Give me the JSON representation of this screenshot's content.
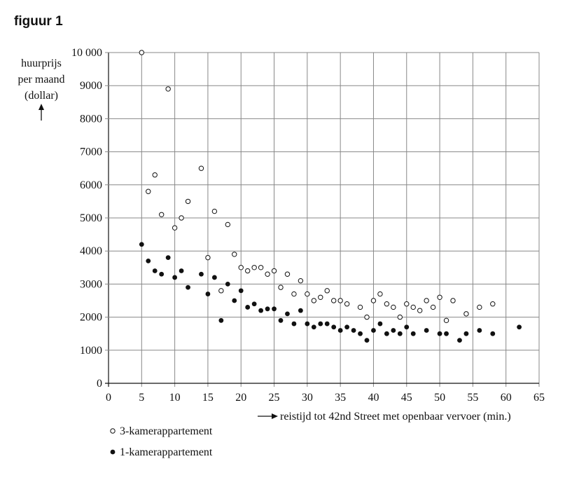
{
  "figure_title": "figuur 1",
  "chart_data": {
    "type": "scatter",
    "ylabel_lines": [
      "huurprijs",
      "per maand",
      "(dollar)"
    ],
    "xlabel": "reistijd tot 42nd Street met openbaar vervoer (min.)",
    "xlim": [
      0,
      65
    ],
    "ylim": [
      0,
      10000
    ],
    "xticks": [
      0,
      5,
      10,
      15,
      20,
      25,
      30,
      35,
      40,
      45,
      50,
      55,
      60,
      65
    ],
    "yticks": [
      0,
      1000,
      2000,
      3000,
      4000,
      5000,
      6000,
      7000,
      8000,
      9000,
      10000
    ],
    "ytick_labels": [
      "0",
      "1000",
      "2000",
      "3000",
      "4000",
      "5000",
      "6000",
      "7000",
      "8000",
      "9000",
      "10 000"
    ],
    "grid": true,
    "legend_position": "bottom-left",
    "series": [
      {
        "name": "3-kamerappartement",
        "marker": "open-circle",
        "points": [
          [
            5,
            10000
          ],
          [
            6,
            5800
          ],
          [
            7,
            6300
          ],
          [
            8,
            5100
          ],
          [
            9,
            8900
          ],
          [
            10,
            4700
          ],
          [
            11,
            5000
          ],
          [
            12,
            5500
          ],
          [
            14,
            6500
          ],
          [
            15,
            3800
          ],
          [
            16,
            5200
          ],
          [
            17,
            2800
          ],
          [
            18,
            4800
          ],
          [
            19,
            3900
          ],
          [
            20,
            3500
          ],
          [
            21,
            3400
          ],
          [
            22,
            3500
          ],
          [
            23,
            3500
          ],
          [
            24,
            3300
          ],
          [
            25,
            3400
          ],
          [
            26,
            2900
          ],
          [
            27,
            3300
          ],
          [
            28,
            2700
          ],
          [
            29,
            3100
          ],
          [
            30,
            2700
          ],
          [
            31,
            2500
          ],
          [
            32,
            2600
          ],
          [
            33,
            2800
          ],
          [
            34,
            2500
          ],
          [
            35,
            2500
          ],
          [
            36,
            2400
          ],
          [
            38,
            2300
          ],
          [
            39,
            2000
          ],
          [
            40,
            2500
          ],
          [
            41,
            2700
          ],
          [
            42,
            2400
          ],
          [
            43,
            2300
          ],
          [
            44,
            2000
          ],
          [
            45,
            2400
          ],
          [
            46,
            2300
          ],
          [
            47,
            2200
          ],
          [
            48,
            2500
          ],
          [
            49,
            2300
          ],
          [
            50,
            2600
          ],
          [
            51,
            1900
          ],
          [
            52,
            2500
          ],
          [
            54,
            2100
          ],
          [
            56,
            2300
          ],
          [
            58,
            2400
          ]
        ]
      },
      {
        "name": "1-kamerappartement",
        "marker": "filled-circle",
        "points": [
          [
            5,
            4200
          ],
          [
            6,
            3700
          ],
          [
            7,
            3400
          ],
          [
            8,
            3300
          ],
          [
            9,
            3800
          ],
          [
            10,
            3200
          ],
          [
            11,
            3400
          ],
          [
            12,
            2900
          ],
          [
            14,
            3300
          ],
          [
            15,
            2700
          ],
          [
            16,
            3200
          ],
          [
            17,
            1900
          ],
          [
            18,
            3000
          ],
          [
            19,
            2500
          ],
          [
            20,
            2800
          ],
          [
            21,
            2300
          ],
          [
            22,
            2400
          ],
          [
            23,
            2200
          ],
          [
            24,
            2250
          ],
          [
            25,
            2250
          ],
          [
            26,
            1900
          ],
          [
            27,
            2100
          ],
          [
            28,
            1800
          ],
          [
            29,
            2200
          ],
          [
            30,
            1800
          ],
          [
            31,
            1700
          ],
          [
            32,
            1800
          ],
          [
            33,
            1800
          ],
          [
            34,
            1700
          ],
          [
            35,
            1600
          ],
          [
            36,
            1700
          ],
          [
            37,
            1600
          ],
          [
            38,
            1500
          ],
          [
            39,
            1300
          ],
          [
            40,
            1600
          ],
          [
            41,
            1800
          ],
          [
            42,
            1500
          ],
          [
            43,
            1600
          ],
          [
            44,
            1500
          ],
          [
            45,
            1700
          ],
          [
            46,
            1500
          ],
          [
            48,
            1600
          ],
          [
            50,
            1500
          ],
          [
            51,
            1500
          ],
          [
            53,
            1300
          ],
          [
            54,
            1500
          ],
          [
            56,
            1600
          ],
          [
            58,
            1500
          ],
          [
            62,
            1700
          ]
        ]
      }
    ]
  }
}
